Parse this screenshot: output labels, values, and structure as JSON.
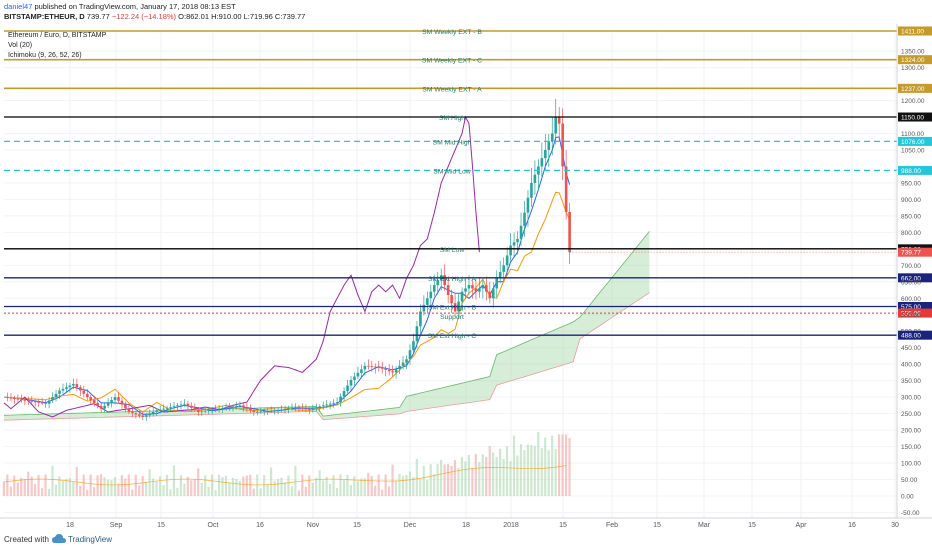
{
  "header": {
    "user": "daniel47",
    "published_text": "published on TradingView.com, January 17, 2018 08:13 EST",
    "symbol": "BITSTAMP:ETHEUR, D",
    "last": "739.77",
    "change": "−122.24 (−14.18%)",
    "ohlc": "O:862.01 H:910.00 L:719.96 C:739.77"
  },
  "footer": {
    "created": "Created with",
    "brand": "TradingView"
  },
  "chart_data": {
    "type": "line",
    "title": "Ethereum / Euro, D, BITSTAMP",
    "indicators": [
      "Vol (20)",
      "Ichimoku (9, 26, 52, 26)"
    ],
    "x_ticks": [
      "18",
      "Sep",
      "15",
      "Oct",
      "16",
      "Nov",
      "15",
      "Dec",
      "18",
      "2018",
      "15",
      "Feb",
      "15",
      "Mar",
      "15",
      "Apr",
      "16",
      "30"
    ],
    "y_ticks": [
      "1411.00",
      "1350.00",
      "1324.00",
      "1300.00",
      "1237.00",
      "1200.00",
      "1150.00",
      "1100.00",
      "1076.00",
      "1050.00",
      "988.00",
      "950.00",
      "900.00",
      "850.00",
      "800.00",
      "750.00",
      "739.77",
      "700.00",
      "662.00",
      "650.00",
      "600.00",
      "575.00",
      "555.06",
      "550.00",
      "500.00",
      "488.00",
      "450.00",
      "400.00",
      "350.00",
      "300.00",
      "250.00",
      "200.00",
      "150.00",
      "100.00",
      "50.00",
      "0.00",
      "-50.00"
    ],
    "levels": [
      {
        "price": 1411,
        "label": "SM   Weekly EXT - B",
        "color": "#c49a2a"
      },
      {
        "price": 1324,
        "label": "SM   Weekly EXT - C",
        "color": "#c49a2a"
      },
      {
        "price": 1237,
        "label": "SM   Weekly EXT - A",
        "color": "#c49a2a"
      },
      {
        "price": 1150,
        "label": "SM High",
        "color": "#000000"
      },
      {
        "price": 1076,
        "label": "SM Mid High",
        "color": "#26c6da"
      },
      {
        "price": 988,
        "label": "SM   Mid Low",
        "color": "#26c6da"
      },
      {
        "price": 750,
        "label": "SM    Low",
        "color": "#000000"
      },
      {
        "price": 662,
        "label": "SM Ext High - A",
        "color": "#1a237e"
      },
      {
        "price": 575,
        "label": "SM Ext High - B",
        "color": "#1a237e"
      },
      {
        "price": 555.06,
        "label": "Support",
        "color": "#e53935"
      },
      {
        "price": 488,
        "label": "SM Ext High - C",
        "color": "#1a237e"
      }
    ],
    "last_price": 739.77,
    "colors": {
      "up": "#26a69a",
      "down": "#ef5350",
      "tenkan": "#2962ff",
      "kijun": "#ff9800",
      "lagging": "#9c27b0",
      "cloud": "#a5d6a7",
      "level_fill": "#1a237e"
    }
  }
}
